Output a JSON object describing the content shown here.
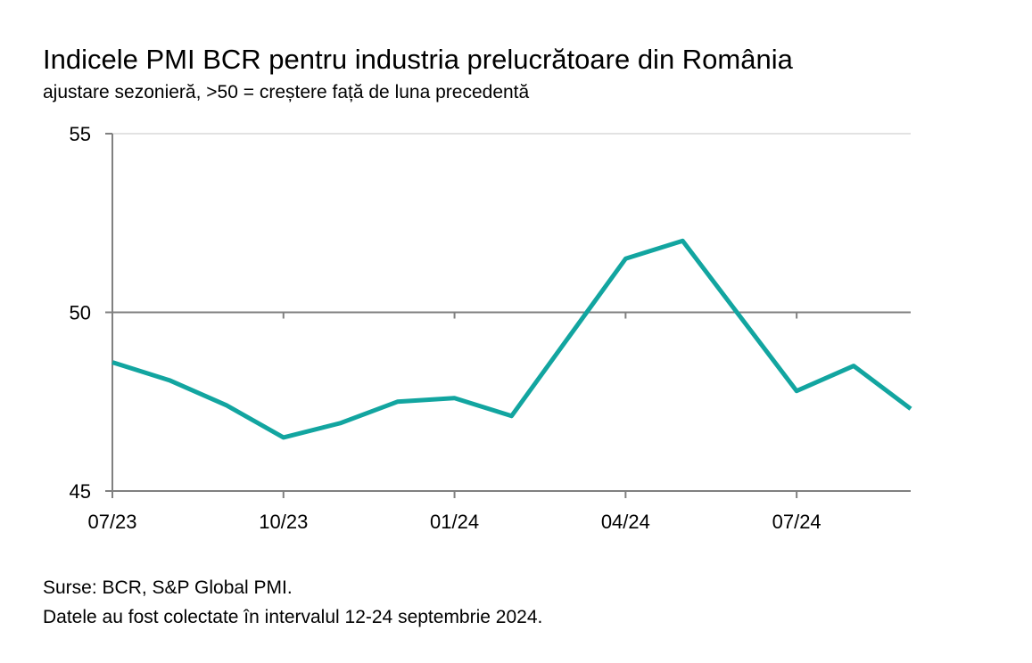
{
  "title": "Indicele PMI BCR pentru industria prelucrătoare din România",
  "subtitle": "ajustare sezonieră, >50 = creștere față de luna precedentă",
  "source_lines": [
    "Surse: BCR, S&P Global PMI.",
    "Datele au fost colectate în intervalul 12-24 septembrie 2024."
  ],
  "colors": {
    "series": "#12a5a0",
    "axis": "#808080",
    "gridline": "#d9d9d9",
    "reference_line": "#808080"
  },
  "chart_data": {
    "type": "line",
    "title": "Indicele PMI BCR pentru industria prelucrătoare din România",
    "subtitle": "ajustare sezonieră, >50 = creștere față de luna precedentă",
    "xlabel": "",
    "ylabel": "",
    "x": [
      "07/23",
      "08/23",
      "09/23",
      "10/23",
      "11/23",
      "12/23",
      "01/24",
      "02/24",
      "03/24",
      "04/24",
      "05/24",
      "06/24",
      "07/24",
      "08/24",
      "09/24"
    ],
    "x_tick_labels": [
      "07/23",
      "10/23",
      "01/24",
      "04/24",
      "07/24"
    ],
    "ylim": [
      45,
      55
    ],
    "y_ticks": [
      45,
      50,
      55
    ],
    "reference_line": 50,
    "grid": "horizontal",
    "series": [
      {
        "values": [
          48.6,
          48.1,
          47.4,
          46.5,
          46.9,
          47.5,
          47.6,
          47.1,
          49.3,
          51.5,
          52.0,
          49.9,
          47.8,
          48.5,
          47.3
        ]
      }
    ]
  }
}
